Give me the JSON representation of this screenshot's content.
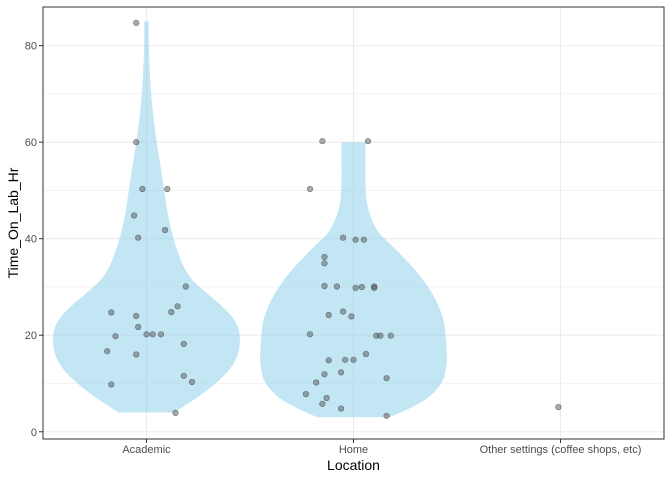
{
  "chart_data": {
    "type": "violin",
    "xlabel": "Location",
    "ylabel": "Time_On_Lab_Hr",
    "ylim": [
      -1.5,
      88
    ],
    "y_ticks": [
      0,
      20,
      40,
      60,
      80
    ],
    "grid": true,
    "colors": {
      "violin": "#87CEEB",
      "point": "#555555",
      "grid": "#EBEBEB",
      "panel_border": "#333333"
    },
    "categories": [
      "Academic",
      "Home",
      "Other settings (coffee shops, etc)"
    ],
    "violins": [
      {
        "category": "Academic",
        "profile": [
          [
            4,
            0.6
          ],
          [
            6,
            0.92
          ],
          [
            8,
            1.22
          ],
          [
            10,
            1.48
          ],
          [
            12,
            1.7
          ],
          [
            14,
            1.86
          ],
          [
            16,
            1.96
          ],
          [
            18,
            2.0
          ],
          [
            20,
            2.0
          ],
          [
            22,
            1.95
          ],
          [
            24,
            1.82
          ],
          [
            26,
            1.62
          ],
          [
            28,
            1.38
          ],
          [
            30,
            1.14
          ],
          [
            32,
            0.94
          ],
          [
            35,
            0.76
          ],
          [
            40,
            0.58
          ],
          [
            45,
            0.46
          ],
          [
            50,
            0.38
          ],
          [
            55,
            0.3
          ],
          [
            60,
            0.22
          ],
          [
            65,
            0.15
          ],
          [
            70,
            0.1
          ],
          [
            75,
            0.07
          ],
          [
            80,
            0.05
          ],
          [
            85,
            0.05
          ]
        ]
      },
      {
        "category": "Home",
        "profile": [
          [
            3,
            0.72
          ],
          [
            5,
            1.15
          ],
          [
            7,
            1.48
          ],
          [
            9,
            1.68
          ],
          [
            11,
            1.8
          ],
          [
            14,
            1.86
          ],
          [
            17,
            1.86
          ],
          [
            20,
            1.84
          ],
          [
            23,
            1.8
          ],
          [
            26,
            1.7
          ],
          [
            29,
            1.55
          ],
          [
            32,
            1.35
          ],
          [
            35,
            1.1
          ],
          [
            38,
            0.82
          ],
          [
            40,
            0.62
          ],
          [
            42,
            0.46
          ],
          [
            45,
            0.33
          ],
          [
            48,
            0.26
          ],
          [
            52,
            0.24
          ],
          [
            56,
            0.24
          ],
          [
            60,
            0.24
          ]
        ]
      }
    ],
    "points": [
      {
        "category": "Academic",
        "jitter": -0.05,
        "y": 84.7
      },
      {
        "category": "Academic",
        "jitter": -0.05,
        "y": 60
      },
      {
        "category": "Academic",
        "jitter": -0.02,
        "y": 50.3
      },
      {
        "category": "Academic",
        "jitter": 0.1,
        "y": 50.3
      },
      {
        "category": "Academic",
        "jitter": -0.06,
        "y": 44.8
      },
      {
        "category": "Academic",
        "jitter": -0.04,
        "y": 40.2
      },
      {
        "category": "Academic",
        "jitter": 0.09,
        "y": 41.8
      },
      {
        "category": "Academic",
        "jitter": 0.19,
        "y": 30.1
      },
      {
        "category": "Academic",
        "jitter": -0.17,
        "y": 24.7
      },
      {
        "category": "Academic",
        "jitter": -0.05,
        "y": 24.0
      },
      {
        "category": "Academic",
        "jitter": 0.12,
        "y": 24.8
      },
      {
        "category": "Academic",
        "jitter": 0.15,
        "y": 26.0
      },
      {
        "category": "Academic",
        "jitter": -0.04,
        "y": 21.7
      },
      {
        "category": "Academic",
        "jitter": 0.0,
        "y": 20.2
      },
      {
        "category": "Academic",
        "jitter": 0.03,
        "y": 20.2
      },
      {
        "category": "Academic",
        "jitter": 0.07,
        "y": 20.2
      },
      {
        "category": "Academic",
        "jitter": -0.15,
        "y": 19.8
      },
      {
        "category": "Academic",
        "jitter": 0.18,
        "y": 18.2
      },
      {
        "category": "Academic",
        "jitter": -0.19,
        "y": 16.7
      },
      {
        "category": "Academic",
        "jitter": -0.05,
        "y": 16.0
      },
      {
        "category": "Academic",
        "jitter": 0.18,
        "y": 11.6
      },
      {
        "category": "Academic",
        "jitter": 0.22,
        "y": 10.3
      },
      {
        "category": "Academic",
        "jitter": -0.17,
        "y": 9.8
      },
      {
        "category": "Academic",
        "jitter": 0.14,
        "y": 3.9
      },
      {
        "category": "Home",
        "jitter": -0.15,
        "y": 60.2
      },
      {
        "category": "Home",
        "jitter": 0.07,
        "y": 60.2
      },
      {
        "category": "Home",
        "jitter": -0.21,
        "y": 50.3
      },
      {
        "category": "Home",
        "jitter": -0.05,
        "y": 40.2
      },
      {
        "category": "Home",
        "jitter": 0.01,
        "y": 39.8
      },
      {
        "category": "Home",
        "jitter": 0.05,
        "y": 39.8
      },
      {
        "category": "Home",
        "jitter": -0.14,
        "y": 36.2
      },
      {
        "category": "Home",
        "jitter": -0.14,
        "y": 34.9
      },
      {
        "category": "Home",
        "jitter": -0.14,
        "y": 30.2
      },
      {
        "category": "Home",
        "jitter": -0.08,
        "y": 30.1
      },
      {
        "category": "Home",
        "jitter": 0.04,
        "y": 30.0
      },
      {
        "category": "Home",
        "jitter": 0.1,
        "y": 30.1
      },
      {
        "category": "Home",
        "jitter": 0.1,
        "y": 29.8
      },
      {
        "category": "Home",
        "jitter": 0.01,
        "y": 29.8
      },
      {
        "category": "Home",
        "jitter": -0.05,
        "y": 24.9
      },
      {
        "category": "Home",
        "jitter": -0.12,
        "y": 24.2
      },
      {
        "category": "Home",
        "jitter": -0.01,
        "y": 23.9
      },
      {
        "category": "Home",
        "jitter": -0.21,
        "y": 20.2
      },
      {
        "category": "Home",
        "jitter": 0.11,
        "y": 19.9
      },
      {
        "category": "Home",
        "jitter": 0.13,
        "y": 19.9
      },
      {
        "category": "Home",
        "jitter": 0.18,
        "y": 19.9
      },
      {
        "category": "Home",
        "jitter": 0.06,
        "y": 16.1
      },
      {
        "category": "Home",
        "jitter": -0.12,
        "y": 14.8
      },
      {
        "category": "Home",
        "jitter": -0.04,
        "y": 14.9
      },
      {
        "category": "Home",
        "jitter": 0.0,
        "y": 14.9
      },
      {
        "category": "Home",
        "jitter": -0.06,
        "y": 12.3
      },
      {
        "category": "Home",
        "jitter": -0.14,
        "y": 11.9
      },
      {
        "category": "Home",
        "jitter": 0.16,
        "y": 11.1
      },
      {
        "category": "Home",
        "jitter": -0.18,
        "y": 10.2
      },
      {
        "category": "Home",
        "jitter": -0.23,
        "y": 7.8
      },
      {
        "category": "Home",
        "jitter": -0.13,
        "y": 7.0
      },
      {
        "category": "Home",
        "jitter": -0.15,
        "y": 5.8
      },
      {
        "category": "Home",
        "jitter": -0.06,
        "y": 4.8
      },
      {
        "category": "Home",
        "jitter": 0.16,
        "y": 3.3
      },
      {
        "category": "Other settings (coffee shops, etc)",
        "jitter": -0.01,
        "y": 5.1
      }
    ]
  }
}
